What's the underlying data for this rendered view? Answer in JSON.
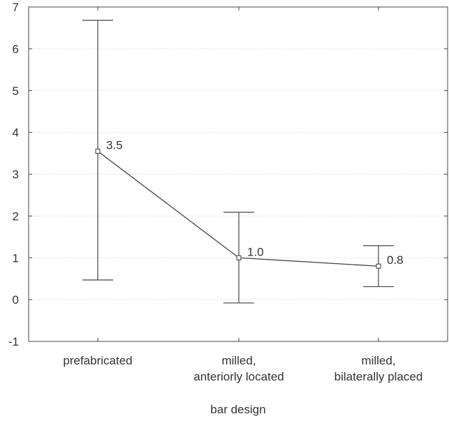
{
  "chart_data": {
    "type": "line",
    "title": "",
    "xlabel": "bar design",
    "ylabel": "",
    "ylim": [
      -1,
      7
    ],
    "yticks": [
      -1,
      0,
      1,
      2,
      3,
      4,
      5,
      6,
      7
    ],
    "grid": true,
    "categories": [
      [
        "prefabricated"
      ],
      [
        "milled,",
        "anteriorly located"
      ],
      [
        "milled,",
        "bilaterally placed"
      ]
    ],
    "series": [
      {
        "values": [
          3.55,
          1.0,
          0.8
        ],
        "error_low": [
          0.47,
          -0.08,
          0.31
        ],
        "error_high": [
          6.68,
          2.09,
          1.29
        ],
        "data_labels": [
          "3.5",
          "1.0",
          "0.8"
        ]
      }
    ],
    "colors": {
      "line": "#444444",
      "grid": "#d0d0d0",
      "axis": "#444444"
    }
  }
}
